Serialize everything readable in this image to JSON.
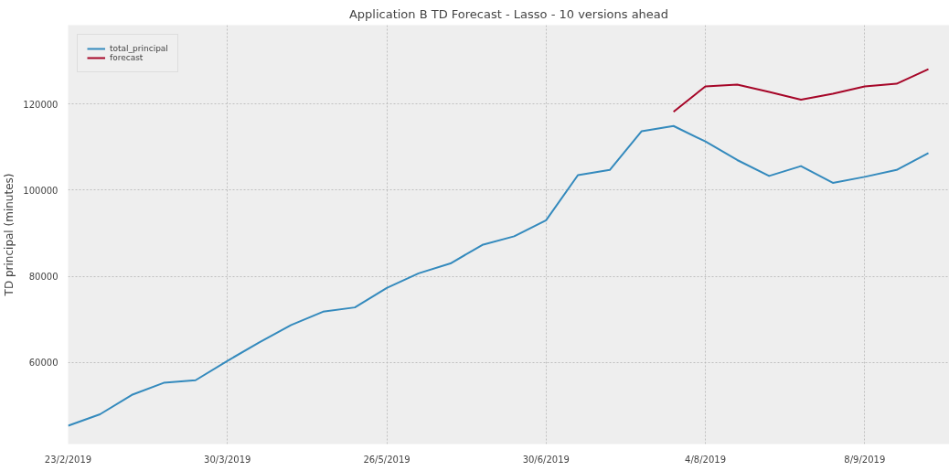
{
  "chart_data": {
    "type": "line",
    "title": "Application B TD Forecast - Lasso - 10 versions ahead",
    "ylabel": "TD principal (minutes)",
    "categories": [
      "23/2/2019",
      null,
      null,
      null,
      null,
      "30/3/2019",
      null,
      null,
      null,
      null,
      "26/5/2019",
      null,
      null,
      null,
      null,
      "30/6/2019",
      null,
      null,
      null,
      null,
      "4/8/2019",
      null,
      null,
      null,
      null,
      "8/9/2019",
      null,
      null
    ],
    "series": [
      {
        "name": "total_principal",
        "color": "#348abd",
        "values": [
          45350,
          48000,
          52500,
          55300,
          55900,
          60400,
          64700,
          68700,
          71800,
          72800,
          77300,
          80700,
          83000,
          87300,
          89300,
          93000,
          103500,
          104700,
          113700,
          114900,
          111300,
          107000,
          103300,
          105600,
          101700,
          103100,
          104700,
          108600
        ]
      },
      {
        "name": "forecast",
        "color": "#a60628",
        "values": [
          null,
          null,
          null,
          null,
          null,
          null,
          null,
          null,
          null,
          null,
          null,
          null,
          null,
          null,
          null,
          null,
          null,
          null,
          null,
          118200,
          124100,
          124500,
          122800,
          121000,
          122400,
          124100,
          124700,
          128100
        ]
      }
    ],
    "ylim": [
      41100,
      138300
    ],
    "yticks": [
      60000,
      80000,
      100000,
      120000
    ],
    "grid": true,
    "legend": "top left"
  }
}
